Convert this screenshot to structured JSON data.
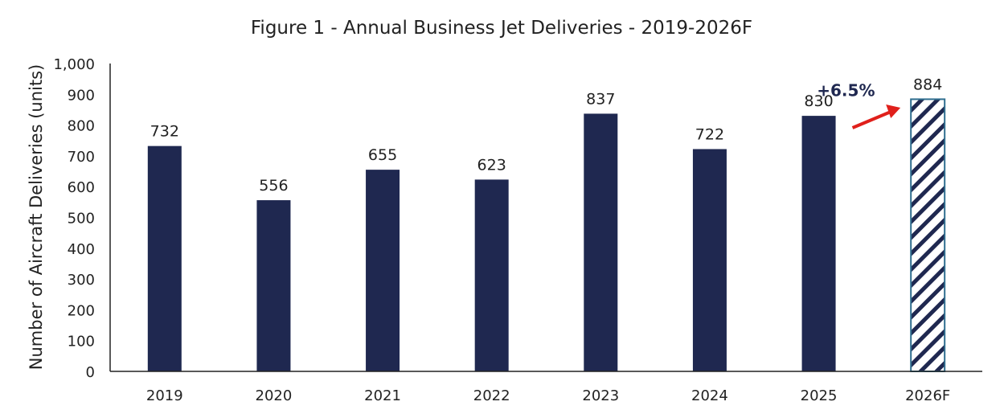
{
  "chart_data": {
    "type": "bar",
    "title": "Figure 1 - Annual Business Jet Deliveries - 2019-2026F",
    "xlabel": "",
    "ylabel": "Number of Aircraft Deliveries (units)",
    "categories": [
      "2019",
      "2020",
      "2021",
      "2022",
      "2023",
      "2024",
      "2025",
      "2026F"
    ],
    "values": [
      732,
      556,
      655,
      623,
      837,
      722,
      830,
      884
    ],
    "forecast": [
      false,
      false,
      false,
      false,
      false,
      false,
      false,
      true
    ],
    "ylim": [
      0,
      1000
    ],
    "yticks": [
      0,
      100,
      200,
      300,
      400,
      500,
      600,
      700,
      800,
      900,
      1000
    ],
    "ytick_labels": [
      "0",
      "100",
      "200",
      "300",
      "400",
      "500",
      "600",
      "700",
      "800",
      "900",
      "1,000"
    ],
    "grid": false,
    "annotation": {
      "text": "+6.5%",
      "from": "2025",
      "to": "2026F",
      "arrow_color": "#e0201b"
    },
    "colors": {
      "bar": "#1f2850",
      "hatch": "#1f2850",
      "forecast_border": "#2f6e8f",
      "annotation_text": "#1f2850"
    }
  }
}
